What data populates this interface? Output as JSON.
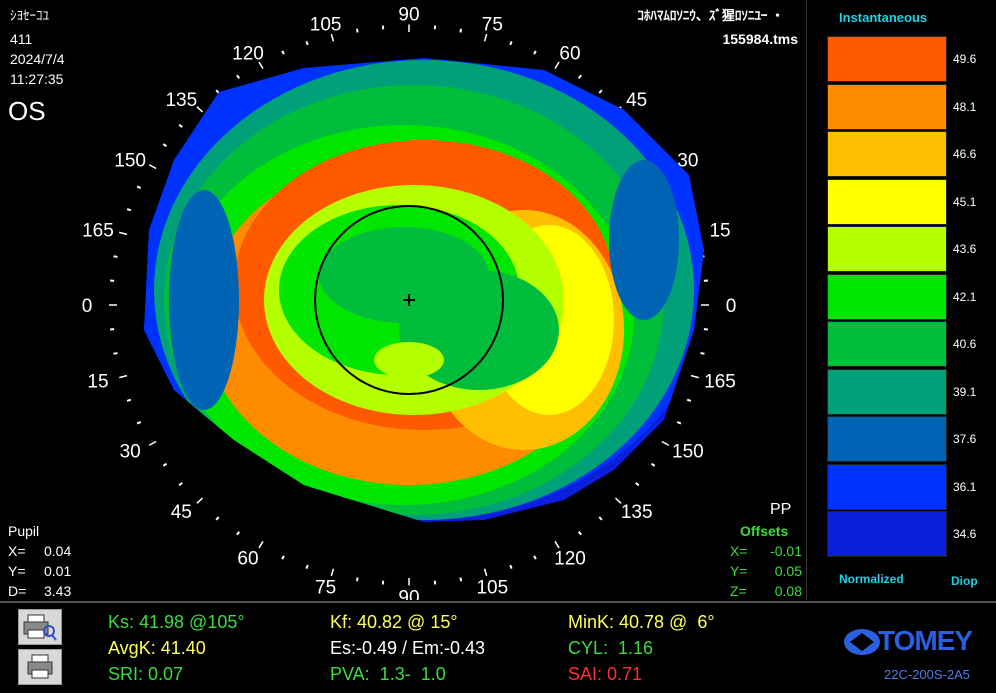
{
  "header": {
    "patient_name": "ｼﾖｾｰｺﾕ",
    "patient_id": "411",
    "date": "2024/7/4",
    "time": "11:27:35",
    "eye": "OS",
    "exam_title": "ｺﾎﾊﾏﾑﾛｿﾆｳ、ｽﾞ猩ﾛｿﾆﾕｰ ・",
    "file_name": "155984.tms"
  },
  "pupil": {
    "title": "Pupil",
    "x_label": "X=",
    "x_value": "0.04",
    "y_label": "Y=",
    "y_value": "0.01",
    "d_label": "D=",
    "d_value": "3.43"
  },
  "offsets": {
    "pp_label": "PP",
    "title": "Offsets",
    "x_label": "X=",
    "x_value": "-0.01",
    "y_label": "Y=",
    "y_value": "0.05",
    "z_label": "Z=",
    "z_value": "0.08"
  },
  "axis_labels": [
    "90",
    "75",
    "60",
    "45",
    "30",
    "15",
    "0",
    "165",
    "150",
    "135",
    "120",
    "105",
    "90",
    "75",
    "60",
    "45",
    "30",
    "15",
    "0",
    "165",
    "150",
    "135",
    "120",
    "105"
  ],
  "scale": {
    "title": "Instantaneous",
    "footer_left": "Normalized",
    "footer_right": "Diop",
    "steps": [
      {
        "value": "49.6",
        "color": "#ff5a00"
      },
      {
        "value": "48.1",
        "color": "#ff8c00"
      },
      {
        "value": "46.6",
        "color": "#ffbe00"
      },
      {
        "value": "45.1",
        "color": "#ffff00"
      },
      {
        "value": "43.6",
        "color": "#b4ff00"
      },
      {
        "value": "42.1",
        "color": "#00e600"
      },
      {
        "value": "40.6",
        "color": "#00be3c"
      },
      {
        "value": "39.1",
        "color": "#00a078"
      },
      {
        "value": "37.6",
        "color": "#0064b4"
      },
      {
        "value": "36.1",
        "color": "#0032ff"
      },
      {
        "value": "34.6",
        "color": "#0a1edc"
      }
    ]
  },
  "indices": {
    "ks": "Ks: 41.98 @105°",
    "kf": "Kf: 40.82 @ 15°",
    "mink": "MinK: 40.78 @  6°",
    "avgk": "AvgK: 41.40",
    "es_em": "Es:-0.49 / Em:-0.43",
    "cyl": "CYL:  1.16",
    "sri": "SRI: 0.07",
    "pva": "PVA:  1.3-  1.0",
    "sai": "SAI: 0.71"
  },
  "colors": {
    "ks": "#3cdc3c",
    "kf": "#ffff55",
    "mink": "#ffff55",
    "avgk": "#ffff55",
    "es_em": "#ffffff",
    "cyl": "#3cdc3c",
    "sri": "#3cdc3c",
    "pva": "#3cdc3c",
    "sai": "#ff3030",
    "scale_title": "#19d3e6",
    "offsets": "#3cdc3c"
  },
  "brand": {
    "name": "TOMEY",
    "model": "22C-200S-2A5"
  },
  "tools": [
    "magnify-print-icon",
    "print-icon"
  ]
}
